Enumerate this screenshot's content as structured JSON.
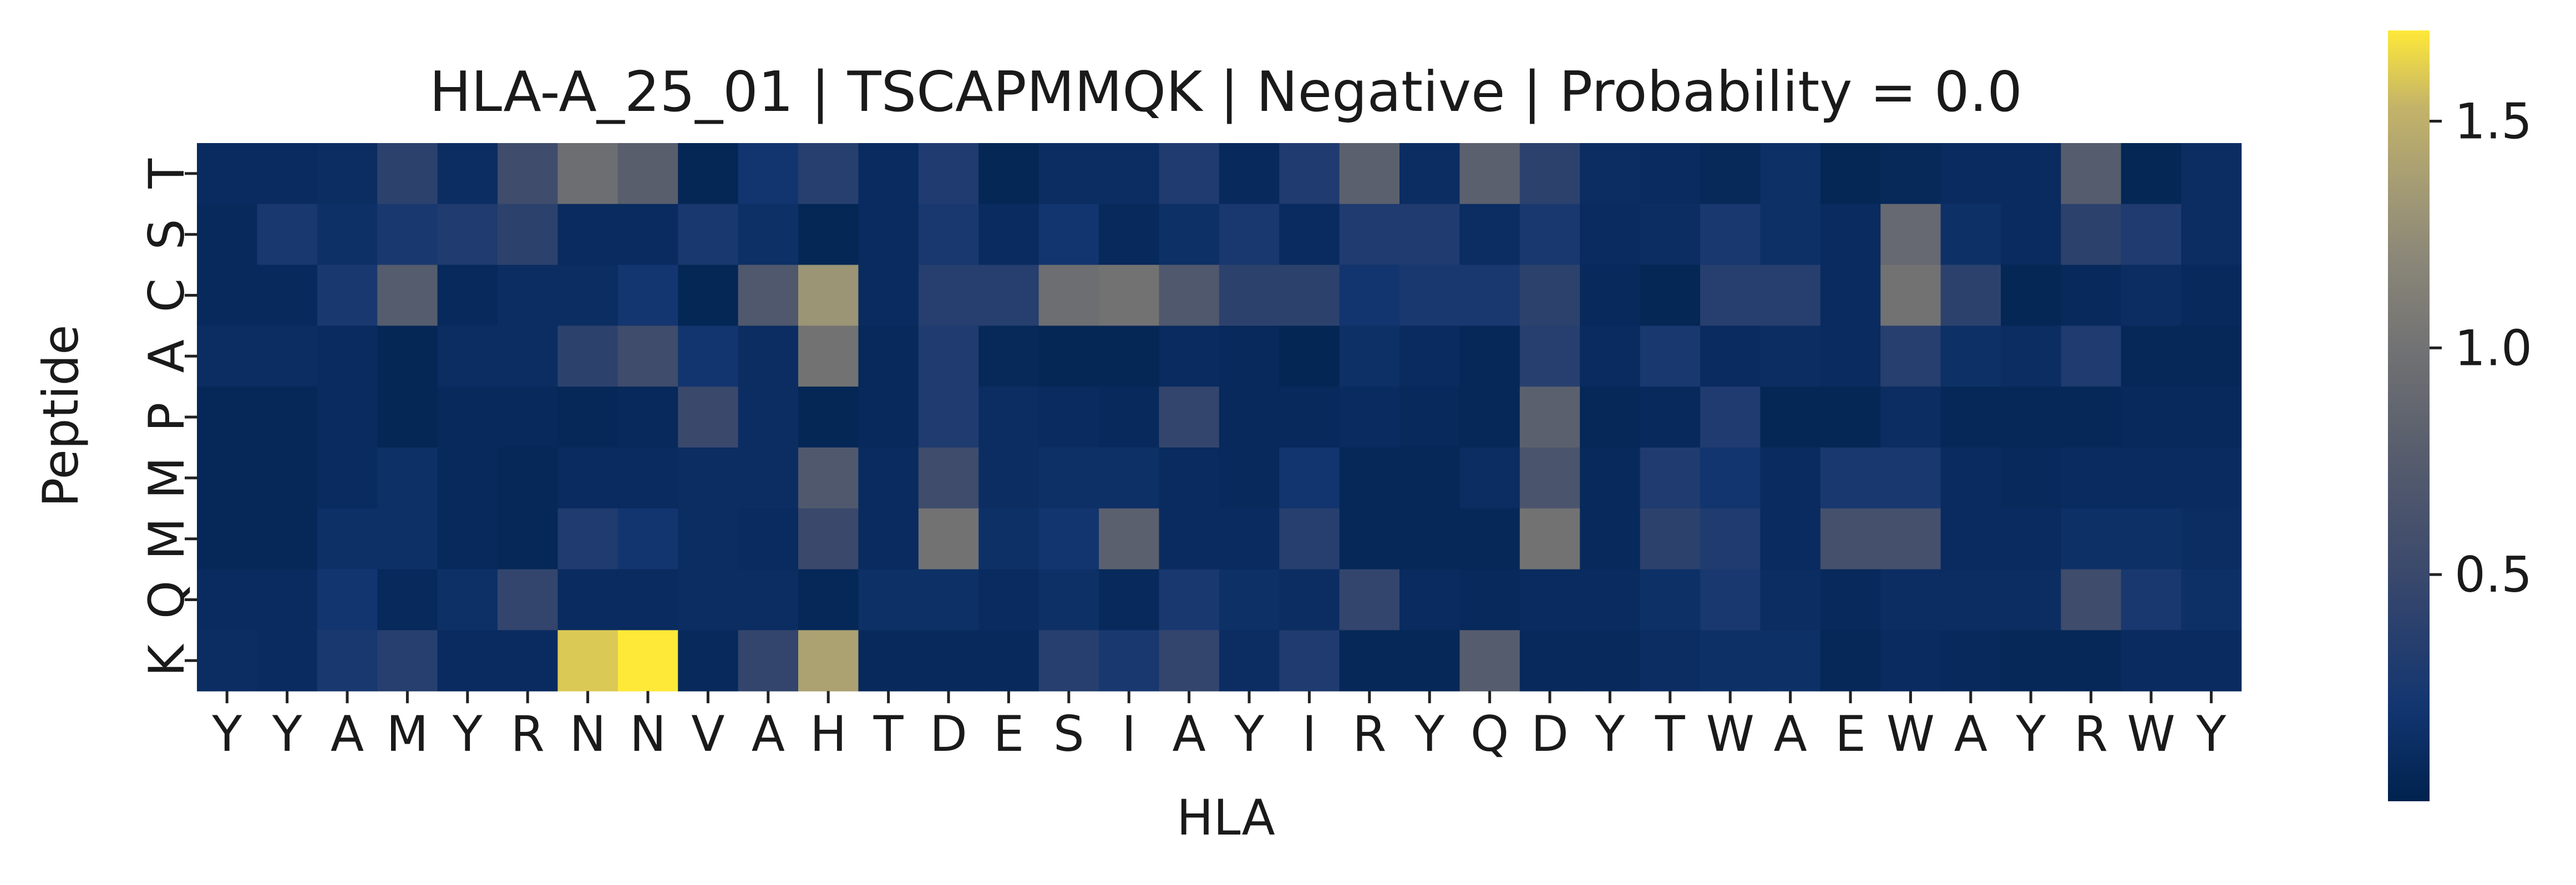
{
  "chart_data": {
    "type": "heatmap",
    "title": "HLA-A_25_01 | TSCAPMMQK | Negative | Probability = 0.0",
    "xlabel": "HLA",
    "ylabel": "Peptide",
    "x_categories": [
      "Y",
      "Y",
      "A",
      "M",
      "Y",
      "R",
      "N",
      "N",
      "V",
      "A",
      "H",
      "T",
      "D",
      "E",
      "S",
      "I",
      "A",
      "Y",
      "I",
      "R",
      "Y",
      "Q",
      "D",
      "Y",
      "T",
      "W",
      "A",
      "E",
      "W",
      "A",
      "Y",
      "R",
      "W",
      "Y"
    ],
    "y_categories": [
      "T",
      "S",
      "C",
      "A",
      "P",
      "M",
      "M",
      "Q",
      "K"
    ],
    "values": [
      [
        0.1,
        0.1,
        0.12,
        0.4,
        0.12,
        0.55,
        0.95,
        0.78,
        0.05,
        0.2,
        0.35,
        0.1,
        0.3,
        0.05,
        0.12,
        0.12,
        0.3,
        0.08,
        0.3,
        0.8,
        0.12,
        0.8,
        0.4,
        0.12,
        0.1,
        0.07,
        0.15,
        0.05,
        0.07,
        0.1,
        0.1,
        0.75,
        0.05,
        0.12
      ],
      [
        0.08,
        0.25,
        0.15,
        0.25,
        0.3,
        0.4,
        0.1,
        0.1,
        0.25,
        0.15,
        0.05,
        0.1,
        0.25,
        0.1,
        0.2,
        0.08,
        0.15,
        0.25,
        0.1,
        0.3,
        0.3,
        0.12,
        0.25,
        0.1,
        0.12,
        0.25,
        0.15,
        0.1,
        0.9,
        0.15,
        0.1,
        0.4,
        0.3,
        0.12
      ],
      [
        0.08,
        0.08,
        0.25,
        0.75,
        0.08,
        0.12,
        0.12,
        0.22,
        0.05,
        0.7,
        1.3,
        0.1,
        0.35,
        0.35,
        0.95,
        1.0,
        0.7,
        0.4,
        0.4,
        0.2,
        0.25,
        0.25,
        0.4,
        0.08,
        0.05,
        0.35,
        0.35,
        0.1,
        1.0,
        0.4,
        0.05,
        0.08,
        0.12,
        0.08
      ],
      [
        0.12,
        0.12,
        0.1,
        0.05,
        0.12,
        0.12,
        0.4,
        0.55,
        0.2,
        0.12,
        1.0,
        0.08,
        0.3,
        0.07,
        0.05,
        0.05,
        0.1,
        0.08,
        0.04,
        0.15,
        0.1,
        0.06,
        0.35,
        0.1,
        0.25,
        0.1,
        0.12,
        0.1,
        0.35,
        0.15,
        0.12,
        0.3,
        0.06,
        0.06
      ],
      [
        0.06,
        0.06,
        0.1,
        0.05,
        0.08,
        0.08,
        0.06,
        0.08,
        0.5,
        0.12,
        0.05,
        0.08,
        0.3,
        0.12,
        0.1,
        0.08,
        0.45,
        0.08,
        0.08,
        0.1,
        0.08,
        0.06,
        0.8,
        0.06,
        0.08,
        0.3,
        0.05,
        0.05,
        0.12,
        0.06,
        0.06,
        0.06,
        0.08,
        0.08
      ],
      [
        0.06,
        0.06,
        0.1,
        0.15,
        0.08,
        0.06,
        0.1,
        0.1,
        0.12,
        0.12,
        0.7,
        0.1,
        0.55,
        0.12,
        0.15,
        0.15,
        0.1,
        0.08,
        0.2,
        0.06,
        0.06,
        0.12,
        0.65,
        0.08,
        0.3,
        0.2,
        0.1,
        0.25,
        0.25,
        0.1,
        0.08,
        0.1,
        0.1,
        0.1
      ],
      [
        0.06,
        0.06,
        0.15,
        0.15,
        0.08,
        0.06,
        0.3,
        0.2,
        0.12,
        0.1,
        0.5,
        0.1,
        1.0,
        0.15,
        0.2,
        0.8,
        0.1,
        0.1,
        0.35,
        0.06,
        0.06,
        0.06,
        1.0,
        0.08,
        0.4,
        0.3,
        0.1,
        0.6,
        0.6,
        0.1,
        0.1,
        0.15,
        0.15,
        0.12
      ],
      [
        0.1,
        0.1,
        0.2,
        0.08,
        0.15,
        0.45,
        0.1,
        0.1,
        0.12,
        0.12,
        0.06,
        0.15,
        0.15,
        0.1,
        0.15,
        0.08,
        0.25,
        0.15,
        0.12,
        0.45,
        0.1,
        0.08,
        0.1,
        0.1,
        0.15,
        0.25,
        0.12,
        0.08,
        0.12,
        0.12,
        0.12,
        0.55,
        0.25,
        0.15
      ],
      [
        0.12,
        0.1,
        0.25,
        0.35,
        0.1,
        0.1,
        1.6,
        1.7,
        0.08,
        0.45,
        1.4,
        0.08,
        0.08,
        0.08,
        0.35,
        0.25,
        0.45,
        0.12,
        0.3,
        0.06,
        0.06,
        0.75,
        0.08,
        0.08,
        0.12,
        0.15,
        0.15,
        0.06,
        0.1,
        0.08,
        0.06,
        0.06,
        0.1,
        0.1
      ]
    ],
    "vmin": 0.0,
    "vmax": 1.7,
    "colormap": "cividis",
    "colorbar_ticks": [
      0.5,
      1.0,
      1.5
    ],
    "colorbar_tick_labels": [
      "0.5",
      "1.0",
      "1.5"
    ],
    "grid": false,
    "legend": "colorbar-right"
  }
}
